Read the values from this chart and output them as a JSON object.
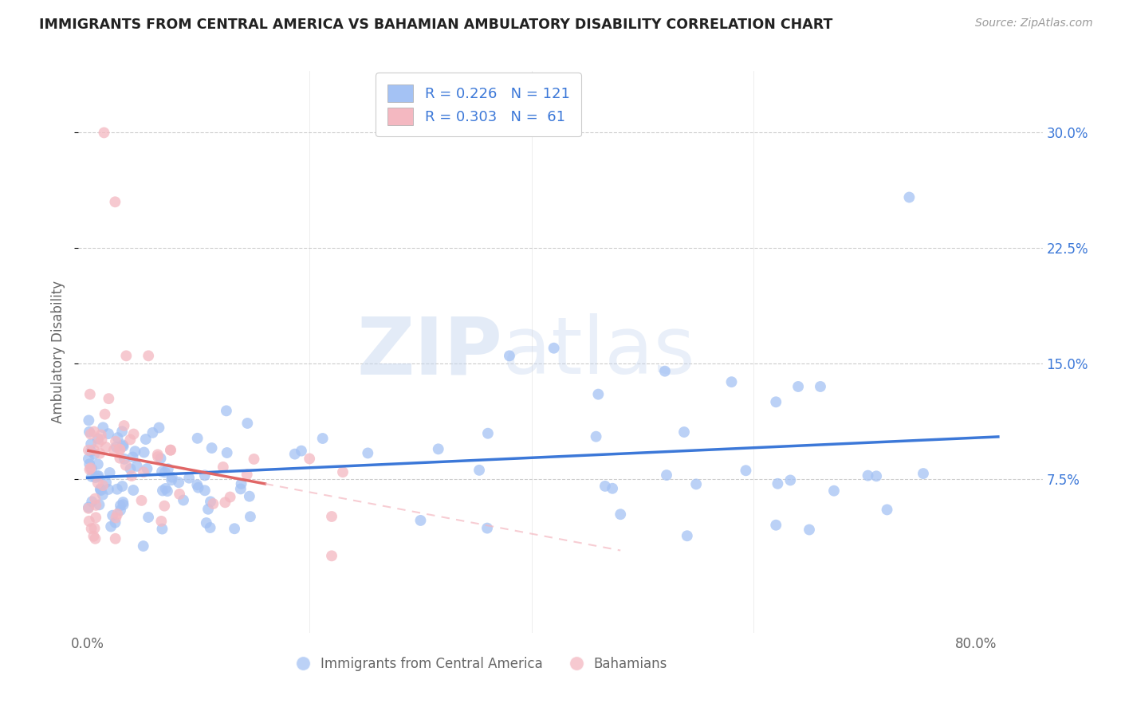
{
  "title": "IMMIGRANTS FROM CENTRAL AMERICA VS BAHAMIAN AMBULATORY DISABILITY CORRELATION CHART",
  "source": "Source: ZipAtlas.com",
  "ylabel_label": "Ambulatory Disability",
  "yticks": [
    0.075,
    0.15,
    0.225,
    0.3
  ],
  "ytick_labels": [
    "7.5%",
    "15.0%",
    "22.5%",
    "30.0%"
  ],
  "xtick_positions": [
    0.0,
    0.8
  ],
  "xtick_labels": [
    "0.0%",
    "80.0%"
  ],
  "xlim": [
    -0.008,
    0.86
  ],
  "ylim": [
    -0.025,
    0.34
  ],
  "blue_color": "#a4c2f4",
  "pink_color": "#f4b8c1",
  "blue_line_color": "#3c78d8",
  "pink_line_color": "#e06666",
  "pink_dashed_color": "#f4b8c1",
  "blue_R": 0.226,
  "blue_N": 121,
  "pink_R": 0.303,
  "pink_N": 61,
  "legend_label_blue": "Immigrants from Central America",
  "legend_label_pink": "Bahamians",
  "watermark_zip": "ZIP",
  "watermark_atlas": "atlas",
  "grid_color": "#cccccc",
  "background_color": "#ffffff",
  "title_color": "#222222",
  "source_color": "#999999",
  "axis_label_color": "#666666",
  "tick_color": "#3c78d8",
  "legend_text_color": "#3c78d8"
}
